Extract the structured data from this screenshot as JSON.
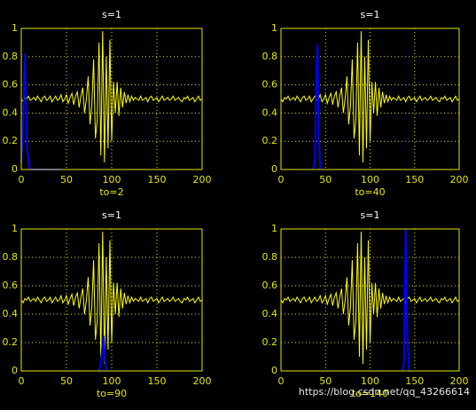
{
  "chart_data": [
    {
      "type": "line",
      "title": "s=1",
      "x_label": "to=2",
      "x": [
        0,
        2,
        4,
        6,
        8,
        10,
        12,
        14,
        16,
        18,
        20,
        22,
        24,
        26,
        28,
        30,
        32,
        34,
        36,
        38,
        40,
        42,
        44,
        46,
        48,
        50,
        52,
        54,
        56,
        58,
        60,
        62,
        64,
        66,
        68,
        70,
        72,
        74,
        76,
        78,
        80,
        82,
        84,
        86,
        88,
        90,
        92,
        94,
        96,
        98,
        100,
        102,
        104,
        106,
        108,
        110,
        112,
        114,
        116,
        118,
        120,
        122,
        124,
        126,
        128,
        130,
        132,
        134,
        136,
        138,
        140,
        142,
        144,
        146,
        148,
        150,
        152,
        154,
        156,
        158,
        160,
        162,
        164,
        166,
        168,
        170,
        172,
        174,
        176,
        178,
        180,
        182,
        184,
        186,
        188,
        190,
        192,
        194,
        196,
        198,
        200
      ],
      "series": [
        {
          "color": "#ffff00",
          "values": [
            0.5,
            0.48,
            0.51,
            0.5,
            0.52,
            0.49,
            0.5,
            0.51,
            0.49,
            0.52,
            0.5,
            0.48,
            0.51,
            0.52,
            0.49,
            0.5,
            0.52,
            0.48,
            0.5,
            0.52,
            0.49,
            0.5,
            0.53,
            0.48,
            0.5,
            0.53,
            0.47,
            0.51,
            0.54,
            0.46,
            0.52,
            0.55,
            0.44,
            0.52,
            0.58,
            0.4,
            0.5,
            0.66,
            0.32,
            0.45,
            0.78,
            0.22,
            0.35,
            0.9,
            0.1,
            0.98,
            0.05,
            0.8,
            0.15,
            0.92,
            0.2,
            0.62,
            0.4,
            0.62,
            0.38,
            0.58,
            0.44,
            0.55,
            0.47,
            0.53,
            0.48,
            0.52,
            0.49,
            0.51,
            0.5,
            0.49,
            0.52,
            0.49,
            0.5,
            0.51,
            0.48,
            0.51,
            0.52,
            0.49,
            0.5,
            0.51,
            0.48,
            0.5,
            0.52,
            0.49,
            0.5,
            0.51,
            0.49,
            0.5,
            0.52,
            0.49,
            0.5,
            0.51,
            0.49,
            0.48,
            0.51,
            0.5,
            0.52,
            0.49,
            0.5,
            0.51,
            0.48,
            0.5,
            0.52,
            0.49,
            0.5
          ]
        },
        {
          "color": "#0000ff",
          "x": [
            0,
            2,
            3,
            4,
            5,
            6,
            8,
            10,
            20,
            30,
            44
          ],
          "values": [
            0.05,
            0.3,
            0.6,
            0.82,
            0.5,
            0.2,
            0.05,
            0,
            0,
            0,
            0
          ]
        }
      ],
      "xlim": [
        0,
        200
      ],
      "ylim": [
        0,
        1
      ],
      "xticks": [
        0,
        50,
        100,
        150,
        200
      ],
      "yticks": [
        0,
        0.2,
        0.4,
        0.6,
        0.8,
        1
      ],
      "grid": true
    },
    {
      "type": "line",
      "title": "s=1",
      "x_label": "to=40",
      "x": [
        0,
        2,
        4,
        6,
        8,
        10,
        12,
        14,
        16,
        18,
        20,
        22,
        24,
        26,
        28,
        30,
        32,
        34,
        36,
        38,
        40,
        42,
        44,
        46,
        48,
        50,
        52,
        54,
        56,
        58,
        60,
        62,
        64,
        66,
        68,
        70,
        72,
        74,
        76,
        78,
        80,
        82,
        84,
        86,
        88,
        90,
        92,
        94,
        96,
        98,
        100,
        102,
        104,
        106,
        108,
        110,
        112,
        114,
        116,
        118,
        120,
        122,
        124,
        126,
        128,
        130,
        132,
        134,
        136,
        138,
        140,
        142,
        144,
        146,
        148,
        150,
        152,
        154,
        156,
        158,
        160,
        162,
        164,
        166,
        168,
        170,
        172,
        174,
        176,
        178,
        180,
        182,
        184,
        186,
        188,
        190,
        192,
        194,
        196,
        198,
        200
      ],
      "series": [
        {
          "color": "#ffff00",
          "values": [
            0.5,
            0.48,
            0.51,
            0.5,
            0.52,
            0.49,
            0.5,
            0.51,
            0.49,
            0.52,
            0.5,
            0.48,
            0.51,
            0.52,
            0.49,
            0.5,
            0.52,
            0.48,
            0.5,
            0.52,
            0.49,
            0.5,
            0.53,
            0.48,
            0.5,
            0.53,
            0.47,
            0.51,
            0.54,
            0.46,
            0.52,
            0.55,
            0.44,
            0.52,
            0.58,
            0.4,
            0.5,
            0.66,
            0.32,
            0.45,
            0.78,
            0.22,
            0.35,
            0.9,
            0.1,
            0.98,
            0.05,
            0.8,
            0.15,
            0.92,
            0.2,
            0.62,
            0.4,
            0.62,
            0.38,
            0.58,
            0.44,
            0.55,
            0.47,
            0.53,
            0.48,
            0.52,
            0.49,
            0.51,
            0.5,
            0.49,
            0.52,
            0.49,
            0.5,
            0.51,
            0.48,
            0.51,
            0.52,
            0.49,
            0.5,
            0.51,
            0.48,
            0.5,
            0.52,
            0.49,
            0.5,
            0.51,
            0.49,
            0.5,
            0.52,
            0.49,
            0.5,
            0.51,
            0.49,
            0.48,
            0.51,
            0.5,
            0.52,
            0.49,
            0.5,
            0.51,
            0.48,
            0.5,
            0.52,
            0.49,
            0.5
          ]
        },
        {
          "color": "#0000ff",
          "x": [
            36,
            38,
            39,
            40,
            41,
            42,
            44
          ],
          "values": [
            0,
            0.05,
            0.4,
            0.75,
            0.89,
            0.3,
            0
          ]
        }
      ],
      "xlim": [
        0,
        200
      ],
      "ylim": [
        0,
        1
      ],
      "xticks": [
        0,
        50,
        100,
        150,
        200
      ],
      "yticks": [
        0,
        0.2,
        0.4,
        0.6,
        0.8,
        1
      ],
      "grid": true
    },
    {
      "type": "line",
      "title": "s=1",
      "x_label": "to=90",
      "x": [
        0,
        2,
        4,
        6,
        8,
        10,
        12,
        14,
        16,
        18,
        20,
        22,
        24,
        26,
        28,
        30,
        32,
        34,
        36,
        38,
        40,
        42,
        44,
        46,
        48,
        50,
        52,
        54,
        56,
        58,
        60,
        62,
        64,
        66,
        68,
        70,
        72,
        74,
        76,
        78,
        80,
        82,
        84,
        86,
        88,
        90,
        92,
        94,
        96,
        98,
        100,
        102,
        104,
        106,
        108,
        110,
        112,
        114,
        116,
        118,
        120,
        122,
        124,
        126,
        128,
        130,
        132,
        134,
        136,
        138,
        140,
        142,
        144,
        146,
        148,
        150,
        152,
        154,
        156,
        158,
        160,
        162,
        164,
        166,
        168,
        170,
        172,
        174,
        176,
        178,
        180,
        182,
        184,
        186,
        188,
        190,
        192,
        194,
        196,
        198,
        200
      ],
      "series": [
        {
          "color": "#ffff00",
          "values": [
            0.5,
            0.48,
            0.51,
            0.5,
            0.52,
            0.49,
            0.5,
            0.51,
            0.49,
            0.52,
            0.5,
            0.48,
            0.51,
            0.52,
            0.49,
            0.5,
            0.52,
            0.48,
            0.5,
            0.52,
            0.49,
            0.5,
            0.53,
            0.48,
            0.5,
            0.53,
            0.47,
            0.51,
            0.54,
            0.46,
            0.52,
            0.55,
            0.44,
            0.52,
            0.58,
            0.4,
            0.5,
            0.66,
            0.32,
            0.45,
            0.78,
            0.22,
            0.35,
            0.9,
            0.1,
            0.98,
            0.05,
            0.8,
            0.15,
            0.92,
            0.2,
            0.62,
            0.4,
            0.62,
            0.38,
            0.58,
            0.44,
            0.55,
            0.47,
            0.53,
            0.48,
            0.52,
            0.49,
            0.51,
            0.5,
            0.49,
            0.52,
            0.49,
            0.5,
            0.51,
            0.48,
            0.51,
            0.52,
            0.49,
            0.5,
            0.51,
            0.48,
            0.5,
            0.52,
            0.49,
            0.5,
            0.51,
            0.49,
            0.5,
            0.52,
            0.49,
            0.5,
            0.51,
            0.49,
            0.48,
            0.51,
            0.5,
            0.52,
            0.49,
            0.5,
            0.51,
            0.48,
            0.5,
            0.52,
            0.49,
            0.5
          ]
        },
        {
          "color": "#0000ff",
          "x": [
            86,
            88,
            89,
            90,
            91,
            92,
            94
          ],
          "values": [
            0,
            0.05,
            0.12,
            0.2,
            0.25,
            0.1,
            0
          ]
        }
      ],
      "xlim": [
        0,
        200
      ],
      "ylim": [
        0,
        1
      ],
      "xticks": [
        0,
        50,
        100,
        150,
        200
      ],
      "yticks": [
        0,
        0.2,
        0.4,
        0.6,
        0.8,
        1
      ],
      "grid": true
    },
    {
      "type": "line",
      "title": "s=1",
      "x_label": "to=140",
      "x": [
        0,
        2,
        4,
        6,
        8,
        10,
        12,
        14,
        16,
        18,
        20,
        22,
        24,
        26,
        28,
        30,
        32,
        34,
        36,
        38,
        40,
        42,
        44,
        46,
        48,
        50,
        52,
        54,
        56,
        58,
        60,
        62,
        64,
        66,
        68,
        70,
        72,
        74,
        76,
        78,
        80,
        82,
        84,
        86,
        88,
        90,
        92,
        94,
        96,
        98,
        100,
        102,
        104,
        106,
        108,
        110,
        112,
        114,
        116,
        118,
        120,
        122,
        124,
        126,
        128,
        130,
        132,
        134,
        136,
        138,
        140,
        142,
        144,
        146,
        148,
        150,
        152,
        154,
        156,
        158,
        160,
        162,
        164,
        166,
        168,
        170,
        172,
        174,
        176,
        178,
        180,
        182,
        184,
        186,
        188,
        190,
        192,
        194,
        196,
        198,
        200
      ],
      "series": [
        {
          "color": "#ffff00",
          "values": [
            0.5,
            0.48,
            0.51,
            0.5,
            0.52,
            0.49,
            0.5,
            0.51,
            0.49,
            0.52,
            0.5,
            0.48,
            0.51,
            0.52,
            0.49,
            0.5,
            0.52,
            0.48,
            0.5,
            0.52,
            0.49,
            0.5,
            0.53,
            0.48,
            0.5,
            0.53,
            0.47,
            0.51,
            0.54,
            0.46,
            0.52,
            0.55,
            0.44,
            0.52,
            0.58,
            0.4,
            0.5,
            0.66,
            0.32,
            0.45,
            0.78,
            0.22,
            0.35,
            0.9,
            0.1,
            0.98,
            0.05,
            0.8,
            0.15,
            0.92,
            0.2,
            0.62,
            0.4,
            0.62,
            0.38,
            0.58,
            0.44,
            0.55,
            0.47,
            0.53,
            0.48,
            0.52,
            0.49,
            0.51,
            0.5,
            0.49,
            0.52,
            0.49,
            0.5,
            0.51,
            0.48,
            0.51,
            0.52,
            0.49,
            0.5,
            0.51,
            0.48,
            0.5,
            0.52,
            0.49,
            0.5,
            0.51,
            0.49,
            0.5,
            0.52,
            0.49,
            0.5,
            0.51,
            0.49,
            0.48,
            0.51,
            0.5,
            0.52,
            0.49,
            0.5,
            0.51,
            0.48,
            0.5,
            0.52,
            0.49,
            0.5
          ]
        },
        {
          "color": "#0000ff",
          "x": [
            136,
            138,
            139,
            140,
            141,
            142,
            144
          ],
          "values": [
            0,
            0.05,
            0.5,
            1.0,
            0.6,
            0.2,
            0
          ]
        }
      ],
      "xlim": [
        0,
        200
      ],
      "ylim": [
        0,
        1
      ],
      "xticks": [
        0,
        50,
        100,
        150,
        200
      ],
      "yticks": [
        0,
        0.2,
        0.4,
        0.6,
        0.8,
        1
      ],
      "grid": true
    }
  ],
  "watermark": "https://blog.csdn.net/qq_43266614"
}
